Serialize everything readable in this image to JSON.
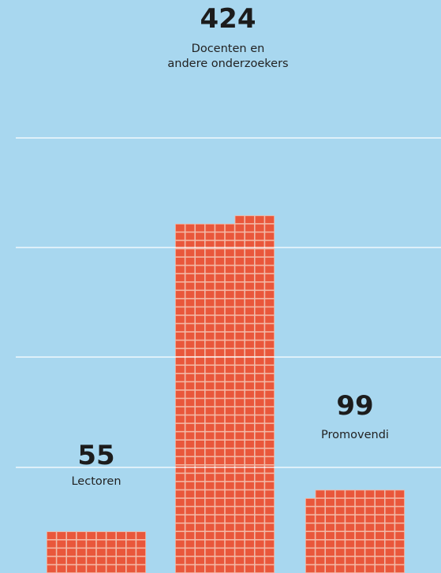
{
  "colors": {
    "background": "#a8d7ef",
    "cell": "#e9573b",
    "cell_gap": "#f4b7a4",
    "gridline": "#ffffff"
  },
  "chart_data": {
    "type": "bar",
    "style": "waffle-column",
    "cell_unit": 1,
    "grid": true,
    "series": [
      {
        "name": "Lectoren",
        "value": 55,
        "label_lines": [
          "Lectoren"
        ]
      },
      {
        "name": "Docenten en andere onderzoekers",
        "value": 424,
        "label_lines": [
          "Docenten en",
          "andere onderzoekers"
        ]
      },
      {
        "name": "Promovendi",
        "value": 99,
        "label_lines": [
          "Promovendi"
        ]
      }
    ]
  }
}
